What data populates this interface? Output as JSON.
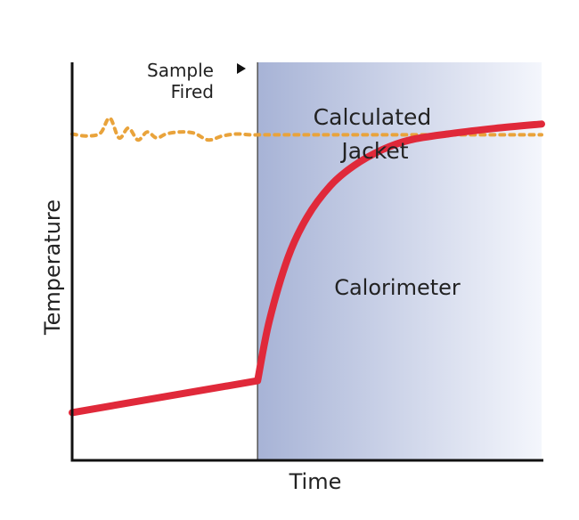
{
  "chart_data": {
    "type": "line",
    "xlabel": "Time",
    "ylabel": "Temperature",
    "x_range": [
      0,
      100
    ],
    "y_range": [
      0,
      100
    ],
    "grid": false,
    "fire_time": 39.5,
    "annotations": {
      "sample_fired": [
        "Sample",
        "Fired"
      ],
      "jacket": [
        "Calculated",
        "Jacket"
      ],
      "calorimeter": "Calorimeter"
    },
    "series": [
      {
        "name": "Calorimeter",
        "style": "solid",
        "color": "#e0293a",
        "x": [
          0,
          39.5,
          42,
          46,
          50,
          55,
          60,
          66,
          72,
          80,
          90,
          100
        ],
        "y": [
          12,
          20,
          35,
          51,
          61,
          69,
          74,
          78,
          80.5,
          82,
          83.4,
          84.5
        ]
      },
      {
        "name": "Calculated Jacket",
        "style": "dotted",
        "color": "#e9a33b",
        "x": [
          0,
          3,
          6,
          8,
          10,
          12,
          14,
          16,
          18,
          20,
          23,
          26,
          29,
          32,
          35,
          38,
          41,
          45,
          50,
          55,
          60,
          70,
          80,
          90,
          100
        ],
        "y": [
          82,
          81.5,
          82.2,
          86,
          81,
          83.5,
          80.5,
          82.5,
          81,
          82,
          82.5,
          82.2,
          80.5,
          81.5,
          82,
          81.8,
          81.8,
          81.8,
          81.8,
          81.8,
          81.8,
          81.8,
          81.8,
          81.8,
          81.8
        ]
      }
    ],
    "colors": {
      "shade_dark": "#a7b3d6",
      "shade_light": "#f4f6fc",
      "axis": "#111111"
    }
  }
}
